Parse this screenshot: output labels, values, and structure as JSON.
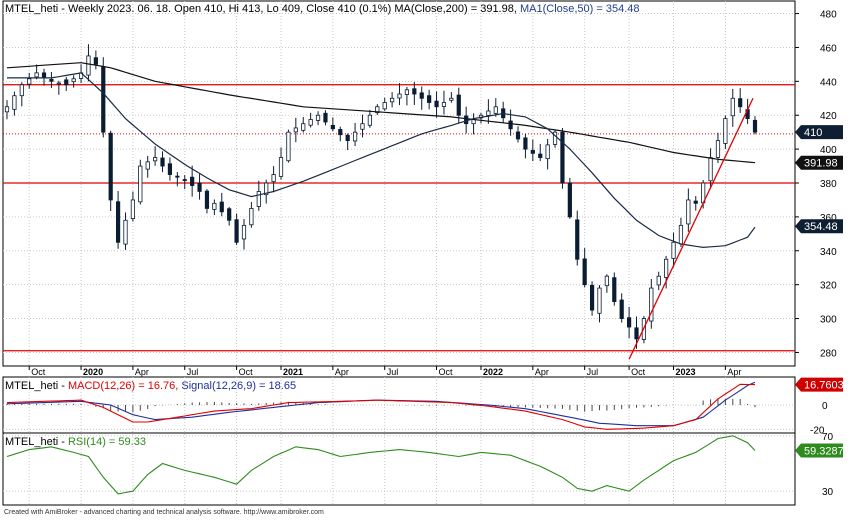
{
  "header": {
    "main": {
      "prefix": "MTEL_heti - Weekly 2023. 06. 18. Open 410, Hi 413, Lo 409, Close 410 (0.1%)",
      "ma200": "MA(Close,200) = 391.98,",
      "ma50": "MA1(Close,50) = 354.48"
    },
    "macd": {
      "prefix": "MTEL_heti -",
      "macd": "MACD(12,26) = 16.76,",
      "signal": "Signal(12,26,9) = 18.65"
    },
    "rsi": {
      "prefix": "MTEL_heti -",
      "rsi": "RSI(14) = 59.33"
    }
  },
  "footer": "Created with AmiBroker - advanced charting and technical analysis software. http://www.amibroker.com",
  "price_labels": {
    "close": "410",
    "ma200": "391.98",
    "ma50": "354.48",
    "macd": "16.7603",
    "rsi": "59.3287"
  },
  "colors": {
    "candle": "#0a1d33",
    "ma200": "#111111",
    "ma50": "#1a2b44",
    "support_lines": "#e00000",
    "trendline": "#e00000",
    "grid": "#c8c8c8",
    "macd_line": "#e00000",
    "signal_line": "#1f2f9f",
    "histogram": "#4a4a4a",
    "rsi_line": "#2e8b1e",
    "label_box": "#0f1f33"
  },
  "chart_data": [
    {
      "type": "candlestick",
      "title": "MTEL_heti - Weekly",
      "x_ticks": [
        "Oct",
        "2020",
        "Apr",
        "Jul",
        "Oct",
        "2021",
        "Apr",
        "Jul",
        "Oct",
        "2022",
        "Apr",
        "Jul",
        "Oct",
        "2023",
        "Apr"
      ],
      "y_ticks": [
        280,
        300,
        320,
        340,
        360,
        380,
        400,
        420,
        440,
        460,
        480
      ],
      "ylim": [
        272,
        488
      ],
      "grid": true,
      "last_bar": {
        "open": 410,
        "high": 413,
        "low": 409,
        "close": 410
      },
      "series": [
        {
          "name": "Close",
          "points": [
            [
              0,
              425
            ],
            [
              2,
              438
            ],
            [
              4,
              445
            ],
            [
              6,
              440
            ],
            [
              8,
              438
            ],
            [
              10,
              445
            ],
            [
              11,
              455
            ],
            [
              12,
              450
            ],
            [
              13,
              410
            ],
            [
              14,
              370
            ],
            [
              15,
              345
            ],
            [
              16,
              358
            ],
            [
              17,
              370
            ],
            [
              18,
              390
            ],
            [
              20,
              395
            ],
            [
              22,
              385
            ],
            [
              24,
              382
            ],
            [
              26,
              375
            ],
            [
              27,
              365
            ],
            [
              28,
              368
            ],
            [
              30,
              358
            ],
            [
              31,
              345
            ],
            [
              32,
              355
            ],
            [
              33,
              365
            ],
            [
              34,
              375
            ],
            [
              36,
              385
            ],
            [
              37,
              395
            ],
            [
              38,
              410
            ],
            [
              40,
              415
            ],
            [
              42,
              420
            ],
            [
              44,
              412
            ],
            [
              46,
              405
            ],
            [
              48,
              415
            ],
            [
              50,
              425
            ],
            [
              52,
              430
            ],
            [
              54,
              435
            ],
            [
              56,
              430
            ],
            [
              58,
              425
            ],
            [
              60,
              430
            ],
            [
              61,
              420
            ],
            [
              62,
              415
            ],
            [
              64,
              420
            ],
            [
              66,
              425
            ],
            [
              68,
              412
            ],
            [
              70,
              400
            ],
            [
              72,
              395
            ],
            [
              74,
              410
            ],
            [
              75,
              380
            ],
            [
              76,
              360
            ],
            [
              77,
              335
            ],
            [
              78,
              320
            ],
            [
              79,
              305
            ],
            [
              80,
              318
            ],
            [
              81,
              325
            ],
            [
              82,
              310
            ],
            [
              83,
              300
            ],
            [
              84,
              295
            ],
            [
              85,
              288
            ],
            [
              86,
              300
            ],
            [
              87,
              318
            ],
            [
              88,
              325
            ],
            [
              89,
              335
            ],
            [
              90,
              345
            ],
            [
              91,
              355
            ],
            [
              92,
              370
            ],
            [
              93,
              368
            ],
            [
              94,
              380
            ],
            [
              95,
              395
            ],
            [
              96,
              405
            ],
            [
              97,
              418
            ],
            [
              98,
              430
            ],
            [
              99,
              425
            ],
            [
              100,
              418
            ],
            [
              101,
              410
            ]
          ]
        },
        {
          "name": "MA(Close,200)",
          "points": [
            [
              0,
              448
            ],
            [
              10,
              451
            ],
            [
              14,
              448
            ],
            [
              20,
              440
            ],
            [
              30,
              432
            ],
            [
              40,
              425
            ],
            [
              50,
              422
            ],
            [
              60,
              419
            ],
            [
              66,
              416
            ],
            [
              70,
              414
            ],
            [
              76,
              410
            ],
            [
              84,
              404
            ],
            [
              90,
              398
            ],
            [
              96,
              394
            ],
            [
              101,
              392
            ]
          ]
        },
        {
          "name": "MA1(Close,50)",
          "points": [
            [
              0,
              442
            ],
            [
              6,
              442
            ],
            [
              10,
              445
            ],
            [
              13,
              433
            ],
            [
              16,
              418
            ],
            [
              20,
              403
            ],
            [
              24,
              391
            ],
            [
              27,
              383
            ],
            [
              30,
              376
            ],
            [
              33,
              372
            ],
            [
              36,
              375
            ],
            [
              40,
              381
            ],
            [
              44,
              388
            ],
            [
              48,
              395
            ],
            [
              52,
              402
            ],
            [
              56,
              409
            ],
            [
              60,
              414
            ],
            [
              63,
              418
            ],
            [
              67,
              421
            ],
            [
              70,
              419
            ],
            [
              73,
              412
            ],
            [
              76,
              400
            ],
            [
              79,
              386
            ],
            [
              82,
              371
            ],
            [
              85,
              358
            ],
            [
              88,
              349
            ],
            [
              91,
              344
            ],
            [
              94,
              342
            ],
            [
              97,
              343
            ],
            [
              100,
              348
            ],
            [
              101,
              354
            ]
          ]
        }
      ],
      "horizontal_lines": [
        438,
        409,
        380,
        281
      ],
      "trendline": [
        [
          84,
          276
        ],
        [
          101,
          430
        ]
      ]
    },
    {
      "type": "line",
      "title": "MACD(12,26), Signal(12,26,9)",
      "y_ticks": [
        0,
        -20
      ],
      "ylim": [
        -23,
        23
      ],
      "series": [
        {
          "name": "MACD(12,26)",
          "points": [
            [
              0,
              2
            ],
            [
              10,
              4
            ],
            [
              13,
              -2
            ],
            [
              15,
              -8
            ],
            [
              17,
              -14
            ],
            [
              19,
              -14
            ],
            [
              23,
              -10
            ],
            [
              28,
              -5
            ],
            [
              33,
              -3
            ],
            [
              38,
              2
            ],
            [
              45,
              3
            ],
            [
              50,
              4
            ],
            [
              55,
              3
            ],
            [
              60,
              2
            ],
            [
              65,
              -1
            ],
            [
              70,
              -5
            ],
            [
              75,
              -12
            ],
            [
              78,
              -18
            ],
            [
              81,
              -20
            ],
            [
              86,
              -19
            ],
            [
              90,
              -17
            ],
            [
              93,
              -12
            ],
            [
              96,
              5
            ],
            [
              99,
              17
            ],
            [
              101,
              16.76
            ]
          ]
        },
        {
          "name": "Signal(12,26,9)",
          "points": [
            [
              0,
              1
            ],
            [
              10,
              3
            ],
            [
              14,
              0
            ],
            [
              17,
              -8
            ],
            [
              20,
              -12
            ],
            [
              25,
              -10
            ],
            [
              30,
              -6
            ],
            [
              36,
              -2
            ],
            [
              42,
              2
            ],
            [
              50,
              4
            ],
            [
              58,
              3
            ],
            [
              65,
              0
            ],
            [
              70,
              -3
            ],
            [
              76,
              -10
            ],
            [
              80,
              -15
            ],
            [
              85,
              -17
            ],
            [
              90,
              -17
            ],
            [
              94,
              -10
            ],
            [
              97,
              4
            ],
            [
              100,
              16
            ],
            [
              101,
              18.65
            ]
          ]
        }
      ]
    },
    {
      "type": "line",
      "title": "RSI(14)",
      "y_ticks": [
        70,
        30
      ],
      "ylim": [
        20,
        72
      ],
      "series": [
        {
          "name": "RSI(14)",
          "points": [
            [
              0,
              55
            ],
            [
              3,
              60
            ],
            [
              6,
              62
            ],
            [
              9,
              58
            ],
            [
              11,
              55
            ],
            [
              13,
              40
            ],
            [
              15,
              28
            ],
            [
              17,
              30
            ],
            [
              19,
              42
            ],
            [
              21,
              50
            ],
            [
              24,
              45
            ],
            [
              28,
              40
            ],
            [
              31,
              35
            ],
            [
              33,
              45
            ],
            [
              36,
              55
            ],
            [
              39,
              62
            ],
            [
              42,
              60
            ],
            [
              45,
              55
            ],
            [
              49,
              58
            ],
            [
              53,
              60
            ],
            [
              57,
              58
            ],
            [
              61,
              55
            ],
            [
              64,
              58
            ],
            [
              68,
              56
            ],
            [
              72,
              48
            ],
            [
              75,
              40
            ],
            [
              77,
              32
            ],
            [
              79,
              30
            ],
            [
              81,
              34
            ],
            [
              84,
              30
            ],
            [
              86,
              38
            ],
            [
              88,
              45
            ],
            [
              90,
              52
            ],
            [
              93,
              58
            ],
            [
              96,
              68
            ],
            [
              98,
              70
            ],
            [
              100,
              65
            ],
            [
              101,
              59.33
            ]
          ]
        }
      ]
    }
  ]
}
